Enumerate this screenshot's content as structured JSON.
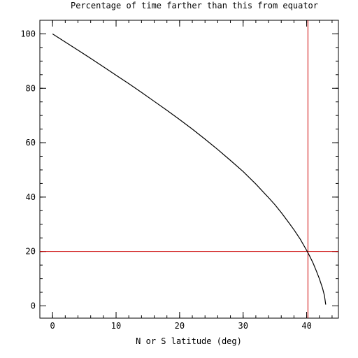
{
  "chart_data": {
    "type": "line",
    "title": "Percentage of time farther than this from equator",
    "xlabel": "N or S latitude  (deg)",
    "ylabel": "",
    "xlim": [
      -2,
      45
    ],
    "ylim": [
      -4.5,
      105
    ],
    "x_ticks": [
      0,
      10,
      20,
      30,
      40
    ],
    "y_ticks": [
      0,
      20,
      40,
      60,
      80,
      100
    ],
    "x_minor_step": 2,
    "y_minor_step": 5,
    "grid": false,
    "series": [
      {
        "color": "#000000",
        "x": [
          0,
          2,
          4,
          6,
          8,
          10,
          12,
          14,
          16,
          18,
          20,
          22,
          24,
          26,
          28,
          30,
          32,
          34,
          35,
          36,
          37,
          38,
          39,
          40,
          40.5,
          41,
          41.5,
          42,
          42.5,
          42.8,
          43.0
        ],
        "y": [
          100,
          97.0,
          94.0,
          91.0,
          87.9,
          84.8,
          81.7,
          78.5,
          75.2,
          71.9,
          68.5,
          65.0,
          61.3,
          57.5,
          53.5,
          49.4,
          44.8,
          39.8,
          37.2,
          34.3,
          31.2,
          28.0,
          24.5,
          20.4,
          18.2,
          15.8,
          13.0,
          10.0,
          6.5,
          3.8,
          0.5
        ]
      }
    ],
    "reference_lines": [
      {
        "orientation": "vertical",
        "x": 40.2,
        "color": "#cc0000"
      },
      {
        "orientation": "horizontal",
        "y": 20,
        "color": "#cc0000"
      }
    ]
  }
}
